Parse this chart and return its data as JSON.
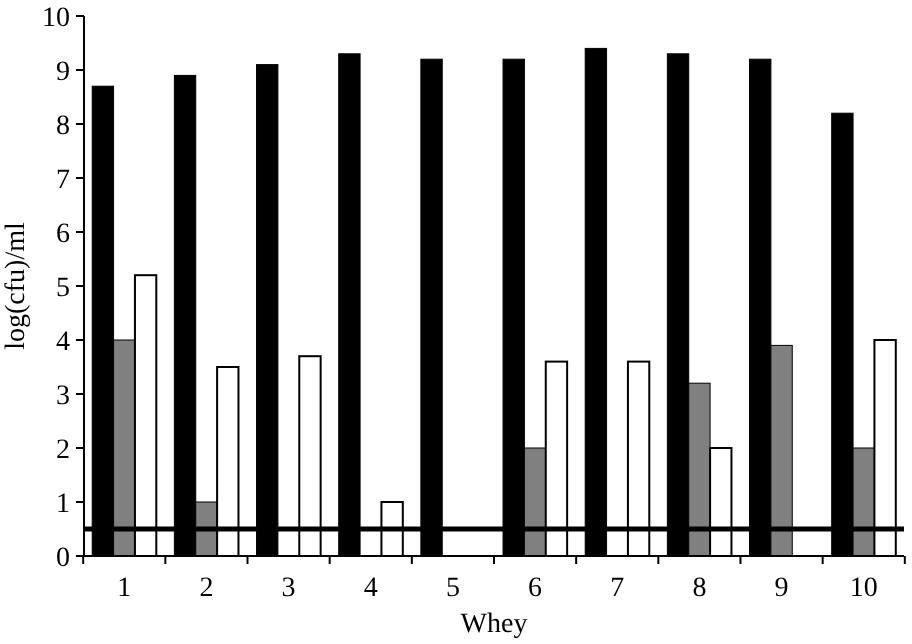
{
  "chart_data": {
    "type": "bar",
    "xlabel": "Whey",
    "ylabel": "log(cfu)/ml",
    "categories": [
      "1",
      "2",
      "3",
      "4",
      "5",
      "6",
      "7",
      "8",
      "9",
      "10"
    ],
    "series": [
      {
        "color": "#000000",
        "values": [
          8.7,
          8.9,
          9.1,
          9.3,
          9.2,
          9.2,
          9.4,
          9.3,
          9.2,
          8.2
        ]
      },
      {
        "color": "#808080",
        "values": [
          4.0,
          1.0,
          null,
          null,
          null,
          2.0,
          null,
          3.2,
          3.9,
          2.0
        ]
      },
      {
        "color": "#ffffff",
        "values": [
          5.2,
          3.5,
          3.7,
          1.0,
          null,
          3.6,
          3.6,
          2.0,
          null,
          4.0
        ]
      }
    ],
    "ylim": [
      0,
      10
    ],
    "yticks": [
      0,
      1,
      2,
      3,
      4,
      5,
      6,
      7,
      8,
      9,
      10
    ],
    "ref_lines": [
      {
        "axis": "y",
        "value": 0.5,
        "color": "#000000"
      }
    ],
    "grid": false
  }
}
